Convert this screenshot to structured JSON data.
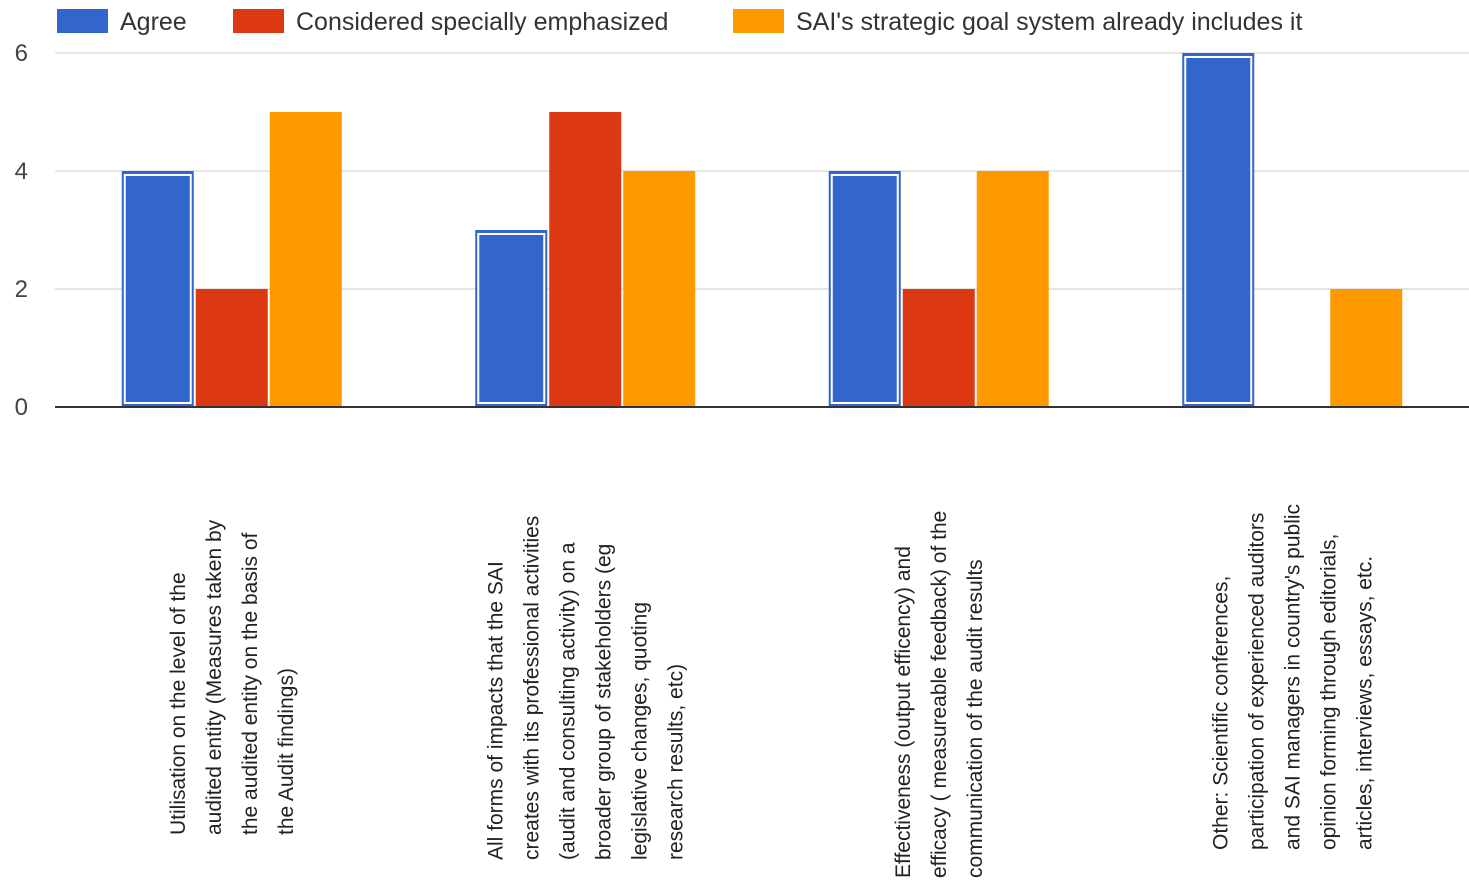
{
  "chart_data": {
    "type": "bar",
    "title": "",
    "xlabel": "",
    "ylabel": "",
    "ylim": [
      0,
      6
    ],
    "yticks": [
      "0",
      "2",
      "4",
      "6"
    ],
    "grid": true,
    "legend_position": "top-left",
    "categories": [
      [
        "Utilisation on the level of the",
        "audited entity (Measures taken by",
        "the audited entity on the basis of",
        "the Audit findings)"
      ],
      [
        "All forms of impacts that the SAI",
        "creates with its professional activities",
        "(audit and consulting activity) on a",
        "broader group of stakeholders (eg",
        "legislative changes, quoting",
        "research results, etc)"
      ],
      [
        "Effectiveness (output efficency) and",
        "efficacy ( measureable feedback) of the",
        "communication of the audit results"
      ],
      [
        "Other: Scientific conferences,",
        "participation of experienced auditors",
        "and SAI managers in country's public",
        "opinion forming through editorials,",
        "articles, interviews, essays, etc."
      ]
    ],
    "series": [
      {
        "name": "Agree",
        "color": "#3366cc",
        "values": [
          4,
          3,
          4,
          6
        ]
      },
      {
        "name": "Considered specially emphasized",
        "color": "#dc3912",
        "values": [
          2,
          5,
          2,
          0
        ]
      },
      {
        "name": "SAI's strategic goal system already includes it",
        "color": "#ff9900",
        "values": [
          5,
          4,
          4,
          2
        ]
      }
    ]
  }
}
